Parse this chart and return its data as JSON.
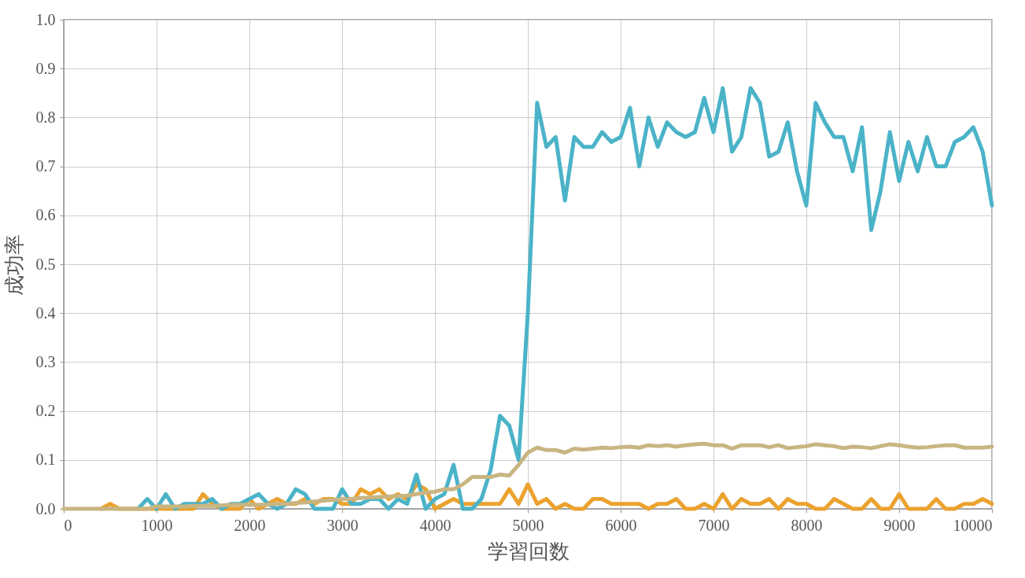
{
  "chart_data": {
    "type": "line",
    "xlabel": "学習回数",
    "ylabel": "成功率",
    "x": [
      0,
      100,
      200,
      300,
      400,
      500,
      600,
      700,
      800,
      900,
      1000,
      1100,
      1200,
      1300,
      1400,
      1500,
      1600,
      1700,
      1800,
      1900,
      2000,
      2100,
      2200,
      2300,
      2400,
      2500,
      2600,
      2700,
      2800,
      2900,
      3000,
      3100,
      3200,
      3300,
      3400,
      3500,
      3600,
      3700,
      3800,
      3900,
      4000,
      4100,
      4200,
      4300,
      4400,
      4500,
      4600,
      4700,
      4800,
      4900,
      5000,
      5100,
      5200,
      5300,
      5400,
      5500,
      5600,
      5700,
      5800,
      5900,
      6000,
      6100,
      6200,
      6300,
      6400,
      6500,
      6600,
      6700,
      6800,
      6900,
      7000,
      7100,
      7200,
      7300,
      7400,
      7500,
      7600,
      7700,
      7800,
      7900,
      8000,
      8100,
      8200,
      8300,
      8400,
      8500,
      8600,
      8700,
      8800,
      8900,
      9000,
      9100,
      9200,
      9300,
      9400,
      9500,
      9600,
      9700,
      9800,
      9900,
      10000
    ],
    "series": [
      {
        "color": "#eba22e",
        "values": [
          null,
          null,
          null,
          null,
          0,
          0.01,
          0,
          0,
          0,
          0,
          0,
          0,
          0,
          0,
          0,
          0.03,
          0.01,
          0,
          0,
          0,
          0.02,
          0,
          0.01,
          0.02,
          0.01,
          0.01,
          0.02,
          0.01,
          0.02,
          0.02,
          0.01,
          0.01,
          0.04,
          0.03,
          0.04,
          0.02,
          0.03,
          0.02,
          0.05,
          0.04,
          0,
          0.01,
          0.02,
          0.01,
          0.01,
          0.01,
          0.01,
          0.01,
          0.04,
          0.01,
          0.05,
          0.01,
          0.02,
          0,
          0.01,
          0,
          0,
          0.02,
          0.02,
          0.01,
          0.01,
          0.01,
          0.01,
          0,
          0.01,
          0.01,
          0.02,
          0,
          0,
          0.01,
          0,
          0.03,
          0,
          0.02,
          0.01,
          0.01,
          0.02,
          0,
          0.02,
          0.01,
          0.01,
          0,
          0,
          0.02,
          0.01,
          0,
          0,
          0.02,
          0,
          0,
          0.03,
          0,
          0,
          0,
          0.02,
          0,
          0,
          0.01,
          0.01,
          0.02,
          0.01
        ]
      },
      {
        "color": "#4bb3c8",
        "values": [
          null,
          null,
          null,
          null,
          null,
          null,
          null,
          null,
          0,
          0.02,
          0,
          0.03,
          0,
          0.01,
          0.01,
          0.01,
          0.02,
          0,
          0.01,
          0.01,
          0.02,
          0.03,
          0.01,
          0,
          0.01,
          0.04,
          0.03,
          0,
          0,
          0,
          0.04,
          0.01,
          0.01,
          0.02,
          0.02,
          0,
          0.02,
          0.01,
          0.07,
          0,
          0.02,
          0.03,
          0.09,
          0,
          0,
          0.02,
          0.08,
          0.19,
          0.17,
          0.1,
          0.4,
          0.83,
          0.74,
          0.76,
          0.63,
          0.76,
          0.74,
          0.74,
          0.77,
          0.75,
          0.76,
          0.82,
          0.7,
          0.8,
          0.74,
          0.79,
          0.77,
          0.76,
          0.77,
          0.84,
          0.77,
          0.86,
          0.73,
          0.76,
          0.86,
          0.83,
          0.72,
          0.73,
          0.79,
          0.69,
          0.62,
          0.83,
          0.79,
          0.76,
          0.76,
          0.69,
          0.78,
          0.57,
          0.65,
          0.77,
          0.67,
          0.75,
          0.69,
          0.76,
          0.7,
          0.7,
          0.75,
          0.76,
          0.78,
          0.73,
          0.62
        ]
      },
      {
        "color": "#c8b582",
        "values": [
          0,
          0,
          0,
          0,
          0,
          0,
          0,
          0,
          0,
          0,
          0.005,
          0.005,
          0.005,
          0.005,
          0.006,
          0.006,
          0.006,
          0.007,
          0.008,
          0.008,
          0.008,
          0.008,
          0.009,
          0.01,
          0.01,
          0.012,
          0.013,
          0.015,
          0.017,
          0.018,
          0.02,
          0.02,
          0.022,
          0.023,
          0.024,
          0.025,
          0.026,
          0.027,
          0.03,
          0.033,
          0.035,
          0.04,
          0.04,
          0.05,
          0.065,
          0.065,
          0.065,
          0.07,
          0.068,
          0.09,
          0.115,
          0.125,
          0.12,
          0.12,
          0.115,
          0.123,
          0.121,
          0.123,
          0.125,
          0.124,
          0.126,
          0.127,
          0.125,
          0.13,
          0.128,
          0.13,
          0.127,
          0.13,
          0.132,
          0.133,
          0.13,
          0.13,
          0.123,
          0.13,
          0.13,
          0.13,
          0.126,
          0.13,
          0.124,
          0.126,
          0.128,
          0.132,
          0.13,
          0.128,
          0.124,
          0.127,
          0.126,
          0.124,
          0.128,
          0.132,
          0.13,
          0.127,
          0.125,
          0.126,
          0.128,
          0.13,
          0.13,
          0.125,
          0.125,
          0.125,
          0.127
        ]
      }
    ],
    "xlim": [
      0,
      10000
    ],
    "xticks": [
      0,
      1000,
      2000,
      3000,
      4000,
      5000,
      6000,
      7000,
      8000,
      9000,
      10000
    ],
    "ylim": [
      0,
      1
    ],
    "yticks": [
      {
        "value": 0,
        "label": "0.0"
      },
      {
        "value": 0.1,
        "label": "0.1"
      },
      {
        "value": 0.2,
        "label": "0.2"
      },
      {
        "value": 0.3,
        "label": "0.3"
      },
      {
        "value": 0.4,
        "label": "0.4"
      },
      {
        "value": 0.5,
        "label": "0.5"
      },
      {
        "value": 0.6,
        "label": "0.6"
      },
      {
        "value": 0.7,
        "label": "0.7"
      },
      {
        "value": 0.8,
        "label": "0.8"
      },
      {
        "value": 0.9,
        "label": "0.9"
      },
      {
        "value": 1,
        "label": "1.0"
      }
    ],
    "grid": true,
    "marker": "none",
    "line_style": "solid"
  }
}
